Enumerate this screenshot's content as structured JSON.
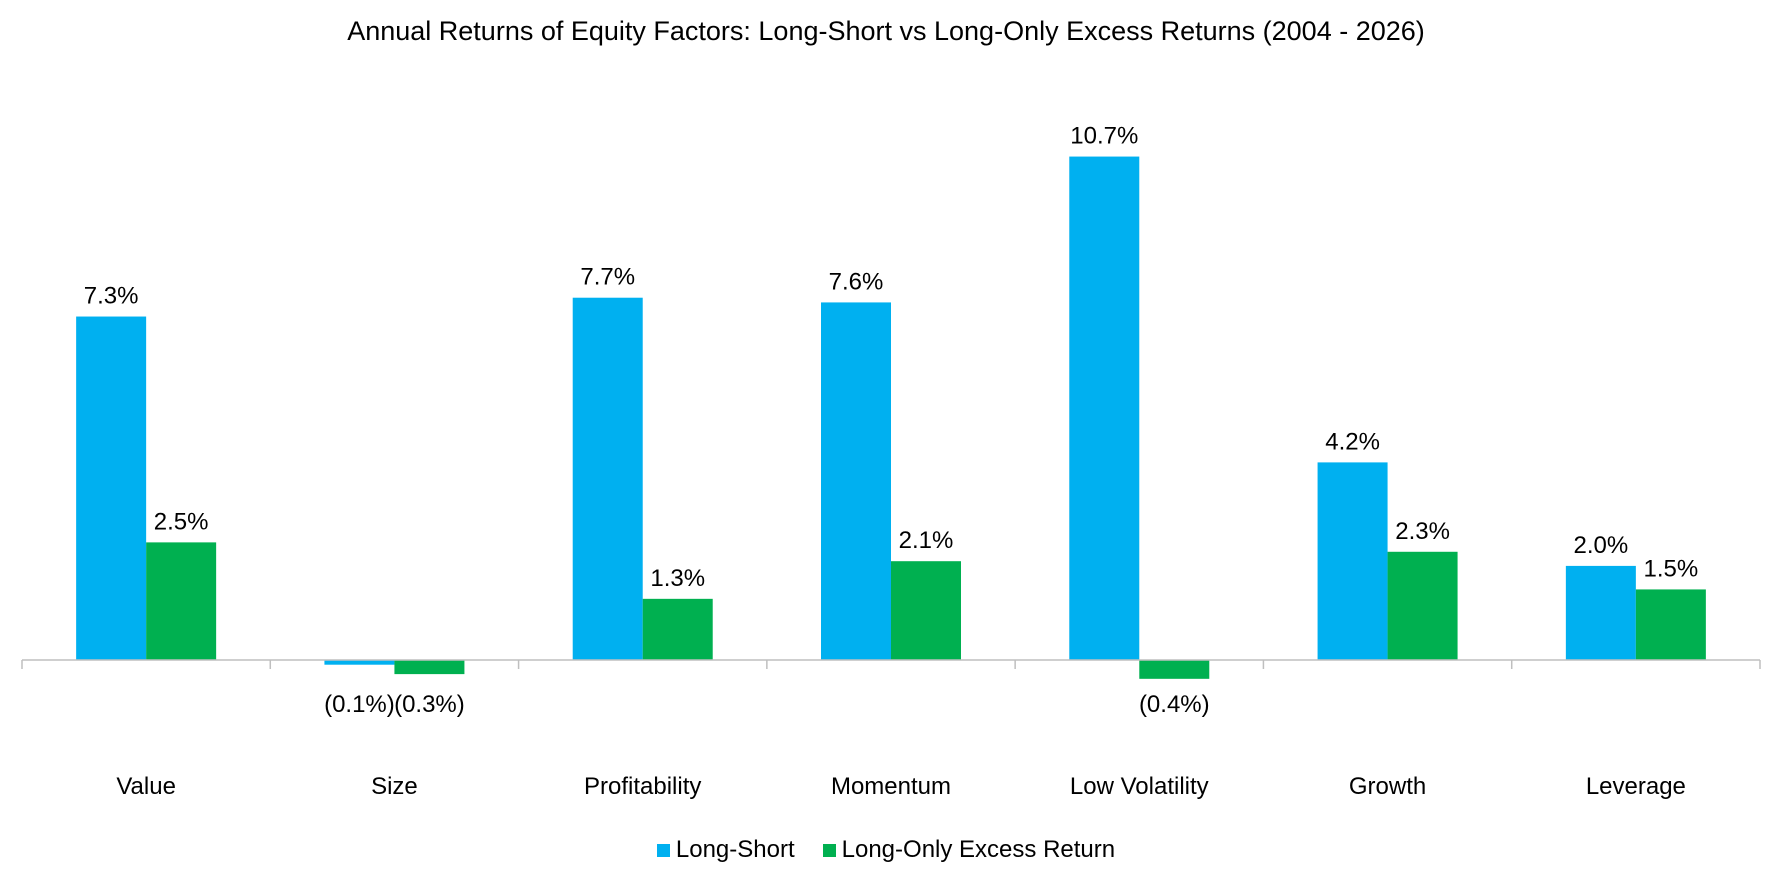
{
  "chart_data": {
    "type": "bar",
    "title": "Annual Returns of Equity Factors: Long-Short vs Long-Only Excess Returns (2004 - 2026)",
    "xlabel": "",
    "ylabel": "",
    "categories": [
      "Value",
      "Size",
      "Profitability",
      "Momentum",
      "Low Volatility",
      "Growth",
      "Leverage"
    ],
    "series": [
      {
        "name": "Long-Short",
        "color": "#00B0F0",
        "values": [
          7.3,
          -0.1,
          7.7,
          7.6,
          10.7,
          4.2,
          2.0
        ],
        "labels": [
          "7.3%",
          "(0.1%)",
          "7.7%",
          "7.6%",
          "10.7%",
          "4.2%",
          "2.0%"
        ]
      },
      {
        "name": "Long-Only Excess Return",
        "color": "#00B050",
        "values": [
          2.5,
          -0.3,
          1.3,
          2.1,
          -0.4,
          2.3,
          1.5
        ],
        "labels": [
          "2.5%",
          "(0.3%)",
          "1.3%",
          "2.1%",
          "(0.4%)",
          "2.3%",
          "1.5%"
        ]
      }
    ],
    "ylim": [
      -1.5,
      11.5
    ],
    "grid": false,
    "legend_position": "bottom"
  }
}
